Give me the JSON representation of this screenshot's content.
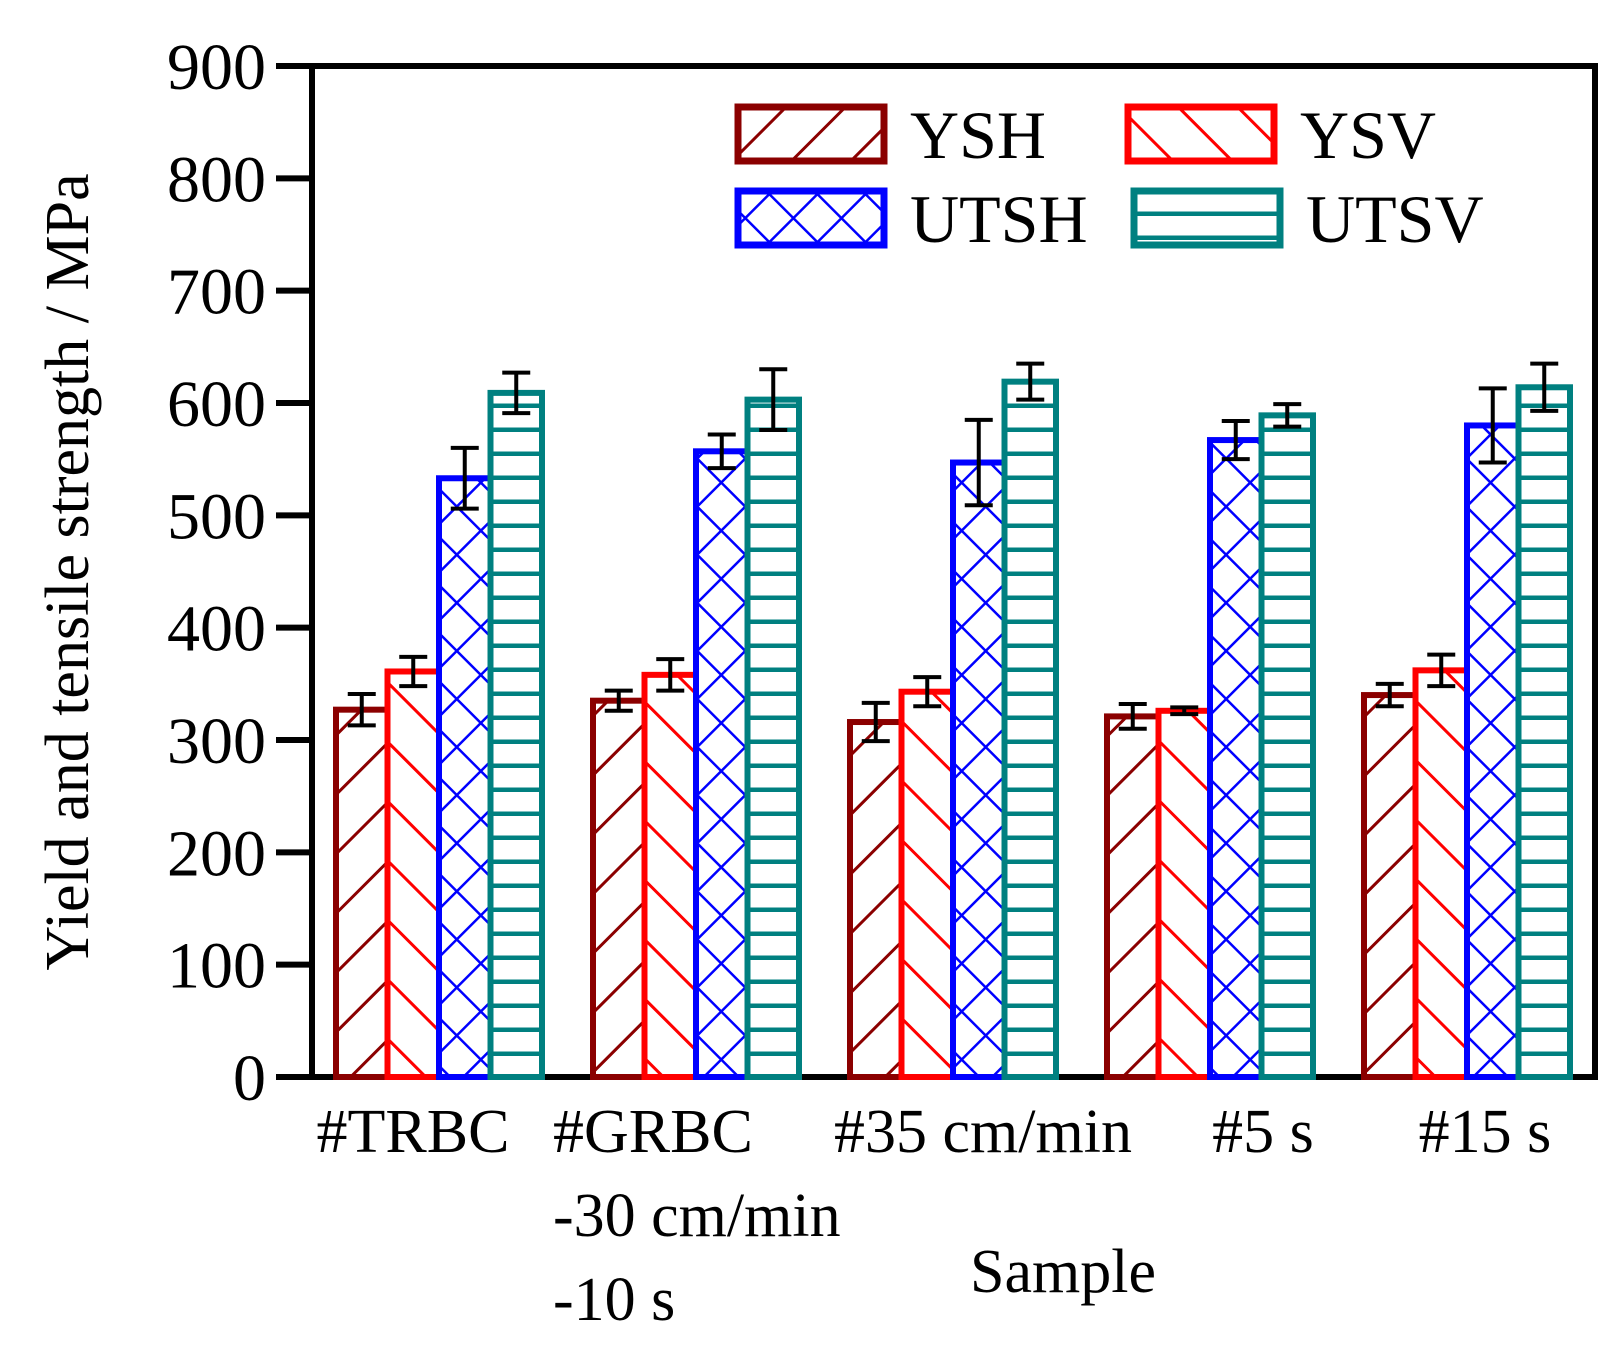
{
  "chart_data": {
    "type": "bar",
    "title": "",
    "xlabel": "Sample",
    "ylabel": "Yield and tensile strength / MPa",
    "ylim": [
      0,
      900
    ],
    "yticks": [
      "0",
      "100",
      "200",
      "300",
      "400",
      "500",
      "600",
      "700",
      "800",
      "900"
    ],
    "categories": [
      [
        "#TRBC"
      ],
      [
        "#GRBC",
        "-30 cm/min",
        "-10 s"
      ],
      [
        "#35 cm/min"
      ],
      [
        "#5 s"
      ],
      [
        "#15 s"
      ]
    ],
    "series": [
      {
        "name": "YSH",
        "color": "#8B0000",
        "pattern": "diagonal-up",
        "values": [
          327,
          335,
          316,
          321,
          340
        ],
        "errors": [
          14,
          9,
          17,
          11,
          10
        ]
      },
      {
        "name": "YSV",
        "color": "#FF0000",
        "pattern": "diagonal-down",
        "values": [
          361,
          358,
          343,
          326,
          362
        ],
        "errors": [
          13,
          14,
          13,
          3,
          14
        ]
      },
      {
        "name": "UTSH",
        "color": "#0000FF",
        "pattern": "cross-hatch",
        "values": [
          533,
          557,
          547,
          567,
          580
        ],
        "errors": [
          27,
          15,
          38,
          17,
          33
        ]
      },
      {
        "name": "UTSV",
        "color": "#008080",
        "pattern": "horizontal",
        "values": [
          609,
          603,
          619,
          589,
          614
        ],
        "errors": [
          18,
          27,
          16,
          10,
          21
        ]
      }
    ],
    "legend": {
      "position": "top-right",
      "columns": 2
    }
  }
}
